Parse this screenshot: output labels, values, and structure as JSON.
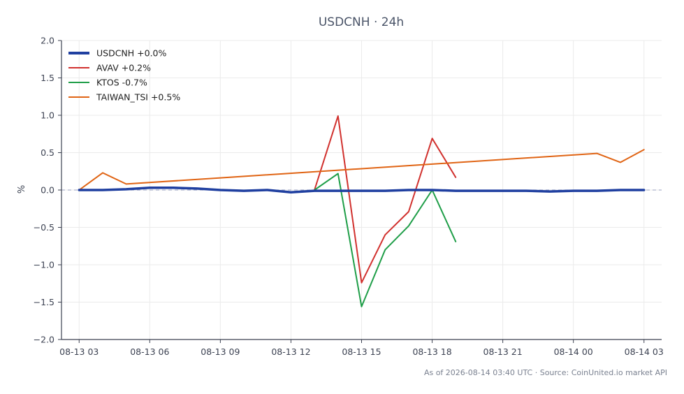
{
  "chart_data": {
    "type": "line",
    "title": "USDCNH · 24h",
    "xlabel": "",
    "ylabel": "%",
    "ylim": [
      -2.0,
      2.0
    ],
    "yticks": [
      "2.0",
      "1.5",
      "1.0",
      "0.5",
      "0.0",
      "−0.5",
      "−1.0",
      "−1.5",
      "−2.0"
    ],
    "ytick_values": [
      2.0,
      1.5,
      1.0,
      0.5,
      0.0,
      -0.5,
      -1.0,
      -1.5,
      -2.0
    ],
    "xlim": [
      "08-13 02:15",
      "08-14 03:45"
    ],
    "xticks": [
      "08-13 03",
      "08-13 06",
      "08-13 09",
      "08-13 12",
      "08-13 15",
      "08-13 18",
      "08-13 21",
      "08-14 00",
      "08-14 03"
    ],
    "xtick_times": [
      "08-13 03:00",
      "08-13 06:00",
      "08-13 09:00",
      "08-13 12:00",
      "08-13 15:00",
      "08-13 18:00",
      "08-13 21:00",
      "08-14 00:00",
      "08-14 03:00"
    ],
    "grid": true,
    "zero_line": true,
    "legend_position": "top-left",
    "series": [
      {
        "name": "USDCNH +0.0%",
        "color": "#1f3fa0",
        "emphasis": true,
        "x": [
          "08-13 03:00",
          "08-13 04:00",
          "08-13 05:00",
          "08-13 06:00",
          "08-13 07:00",
          "08-13 08:00",
          "08-13 09:00",
          "08-13 10:00",
          "08-13 11:00",
          "08-13 12:00",
          "08-13 13:00",
          "08-13 14:00",
          "08-13 15:00",
          "08-13 16:00",
          "08-13 17:00",
          "08-13 18:00",
          "08-13 19:00",
          "08-13 20:00",
          "08-13 21:00",
          "08-13 22:00",
          "08-13 23:00",
          "08-14 00:00",
          "08-14 01:00",
          "08-14 02:00",
          "08-14 03:00"
        ],
        "y": [
          0.0,
          0.0,
          0.01,
          0.03,
          0.03,
          0.02,
          0.0,
          -0.01,
          0.0,
          -0.03,
          -0.01,
          -0.01,
          -0.01,
          -0.01,
          0.0,
          0.0,
          -0.01,
          -0.01,
          -0.01,
          -0.01,
          -0.02,
          -0.01,
          -0.01,
          0.0,
          0.0
        ]
      },
      {
        "name": "AVAV +0.2%",
        "color": "#d1312e",
        "emphasis": false,
        "x": [
          "08-13 13:00",
          "08-13 14:00",
          "08-13 15:00",
          "08-13 16:00",
          "08-13 17:00",
          "08-13 18:00",
          "08-13 19:00"
        ],
        "y": [
          0.0,
          0.99,
          -1.24,
          -0.6,
          -0.29,
          0.69,
          0.17
        ]
      },
      {
        "name": "KTOS -0.7%",
        "color": "#1f9e48",
        "emphasis": false,
        "x": [
          "08-13 13:00",
          "08-13 14:00",
          "08-13 15:00",
          "08-13 16:00",
          "08-13 17:00",
          "08-13 18:00",
          "08-13 19:00"
        ],
        "y": [
          0.0,
          0.22,
          -1.56,
          -0.8,
          -0.48,
          0.0,
          -0.69
        ]
      },
      {
        "name": "TAIWAN_TSI +0.5%",
        "color": "#e06414",
        "emphasis": false,
        "x": [
          "08-13 03:00",
          "08-13 04:00",
          "08-13 05:00",
          "08-14 01:00",
          "08-14 02:00",
          "08-14 03:00"
        ],
        "y": [
          0.0,
          0.23,
          0.08,
          0.49,
          0.37,
          0.54
        ]
      }
    ]
  },
  "footnote": "As of 2026-08-14 03:40 UTC · Source: CoinUnited.io market API",
  "colors": {
    "grid": "#ebebeb",
    "axis": "#3c4252",
    "zero_line": "#9aa0c0"
  }
}
